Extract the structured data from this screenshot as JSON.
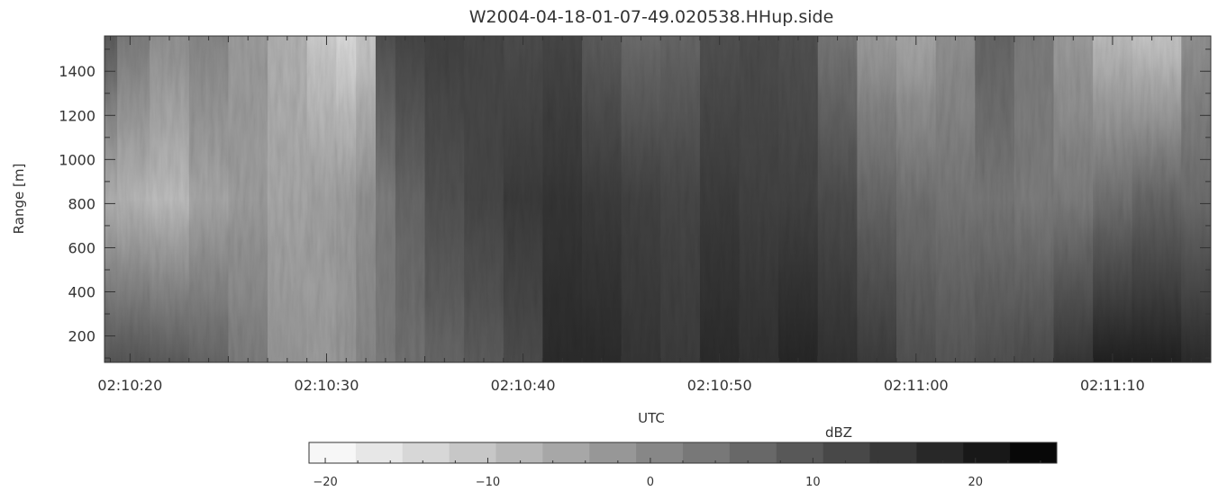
{
  "chart_data": {
    "type": "heatmap",
    "title": "W2004-04-18-01-07-49.020538.HHup.side",
    "xlabel": "UTC",
    "ylabel": "Range [m]",
    "x_tick_labels": [
      "02:10:20",
      "02:10:30",
      "02:10:40",
      "02:10:50",
      "02:11:00",
      "02:11:10"
    ],
    "x_ticks_seconds": [
      20,
      30,
      40,
      50,
      60,
      70
    ],
    "x_range_seconds": [
      18.7,
      75.0
    ],
    "y_ticks": [
      200,
      400,
      600,
      800,
      1000,
      1200,
      1400
    ],
    "y_tick_labels": [
      "200",
      "400",
      "600",
      "800",
      "1000",
      "1200",
      "1400"
    ],
    "ylim": [
      80,
      1560
    ],
    "colorbar": {
      "label": "dBZ",
      "range": [
        -21,
        25
      ],
      "ticks": [
        -20,
        -10,
        0,
        10,
        20
      ],
      "tick_labels": [
        "−20",
        "−10",
        "0",
        "10",
        "20"
      ],
      "levels": 16,
      "colormap": "grayscale, white = low, black = high"
    },
    "column_profiles": {
      "x_seconds": [
        18.7,
        20,
        22,
        24,
        26,
        28,
        30,
        31,
        32,
        33,
        34,
        36,
        38,
        40,
        42,
        44,
        46,
        48,
        50,
        52,
        54,
        56,
        58,
        60,
        62,
        64,
        66,
        68,
        70,
        72,
        75
      ],
      "low_range_dBZ": [
        9,
        9,
        8,
        6,
        2,
        -3,
        -4,
        -3,
        0,
        2,
        4,
        6,
        8,
        11,
        17,
        17,
        15,
        14,
        17,
        16,
        18,
        16,
        14,
        10,
        9,
        10,
        11,
        15,
        19,
        19,
        17
      ],
      "mid_range_dBZ": [
        -8,
        -9,
        -10,
        -6,
        -4,
        -6,
        -5,
        -4,
        -2,
        2,
        6,
        10,
        12,
        14,
        15,
        14,
        13,
        12,
        14,
        13,
        13,
        11,
        6,
        4,
        3,
        3,
        2,
        2,
        4,
        6,
        5
      ],
      "high_range_dBZ": [
        8,
        2,
        -2,
        0,
        -4,
        -8,
        -13,
        -16,
        -12,
        10,
        12,
        13,
        12,
        11,
        12,
        8,
        5,
        6,
        10,
        11,
        10,
        3,
        -4,
        -6,
        -2,
        6,
        2,
        -4,
        -10,
        -12,
        -2
      ]
    }
  }
}
